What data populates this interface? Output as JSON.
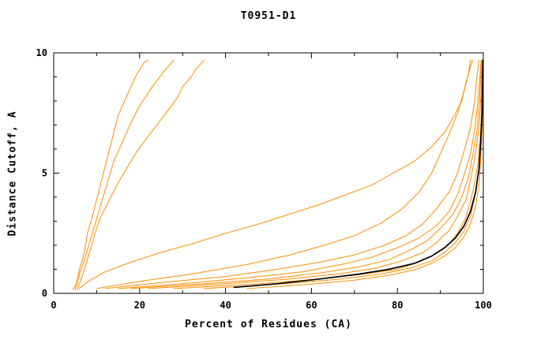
{
  "chart_data": {
    "type": "line",
    "title": "T0951-D1",
    "xlabel": "Percent of Residues (CA)",
    "ylabel": "Distance Cutoff, A",
    "xlim": [
      0,
      100
    ],
    "ylim": [
      0,
      10
    ],
    "x_ticks": [
      0,
      20,
      40,
      60,
      80,
      100
    ],
    "x_minor_ticks": [
      10,
      30,
      50,
      70,
      90
    ],
    "y_ticks": [
      0,
      5,
      10
    ],
    "y_minor_ticks": [
      1,
      2,
      3,
      4,
      6,
      7,
      8,
      9
    ],
    "grid": false,
    "legend": "none",
    "colors": {
      "background": "#ffffff",
      "axis": "#000000",
      "model_line": "#ff8c00",
      "reference_line": "#000000"
    },
    "series": [
      {
        "name": "model_poor_1",
        "color": "#ff8c00",
        "width": 1,
        "points": [
          [
            4.5,
            0.15
          ],
          [
            5,
            0.3
          ],
          [
            5.5,
            0.6
          ],
          [
            6,
            1.0
          ],
          [
            7,
            1.6
          ],
          [
            7.5,
            2.1
          ],
          [
            8,
            2.6
          ],
          [
            9,
            3.2
          ],
          [
            10,
            3.9
          ],
          [
            11,
            4.6
          ],
          [
            12,
            5.3
          ],
          [
            13,
            6.0
          ],
          [
            14,
            6.7
          ],
          [
            15,
            7.4
          ],
          [
            17,
            8.2
          ],
          [
            19,
            9.0
          ],
          [
            21,
            9.6
          ],
          [
            22,
            9.7
          ]
        ]
      },
      {
        "name": "model_poor_2",
        "color": "#ff8c00",
        "width": 1,
        "points": [
          [
            5,
            0.15
          ],
          [
            5.5,
            0.4
          ],
          [
            6,
            0.8
          ],
          [
            7,
            1.3
          ],
          [
            8,
            1.9
          ],
          [
            9,
            2.5
          ],
          [
            10,
            3.1
          ],
          [
            11,
            3.7
          ],
          [
            12,
            4.3
          ],
          [
            13,
            4.9
          ],
          [
            14,
            5.5
          ],
          [
            16,
            6.3
          ],
          [
            18,
            7.1
          ],
          [
            20,
            7.8
          ],
          [
            23,
            8.6
          ],
          [
            26,
            9.3
          ],
          [
            28,
            9.7
          ]
        ]
      },
      {
        "name": "model_poor_3",
        "color": "#ff8c00",
        "width": 1,
        "points": [
          [
            5.5,
            0.15
          ],
          [
            6,
            0.4
          ],
          [
            7,
            0.9
          ],
          [
            8,
            1.5
          ],
          [
            9,
            2.1
          ],
          [
            10,
            2.7
          ],
          [
            11,
            3.2
          ],
          [
            13,
            3.9
          ],
          [
            15,
            4.6
          ],
          [
            17,
            5.2
          ],
          [
            19,
            5.8
          ],
          [
            21,
            6.3
          ],
          [
            24,
            7.0
          ],
          [
            27,
            7.7
          ],
          [
            29,
            8.2
          ],
          [
            30,
            8.6
          ],
          [
            32,
            9.0
          ],
          [
            33,
            9.3
          ],
          [
            35,
            9.7
          ]
        ]
      },
      {
        "name": "model_mid_1",
        "color": "#ff8c00",
        "width": 1,
        "points": [
          [
            6,
            0.2
          ],
          [
            8,
            0.5
          ],
          [
            12,
            0.9
          ],
          [
            18,
            1.3
          ],
          [
            25,
            1.7
          ],
          [
            33,
            2.1
          ],
          [
            40,
            2.5
          ],
          [
            48,
            2.9
          ],
          [
            55,
            3.3
          ],
          [
            62,
            3.7
          ],
          [
            68,
            4.1
          ],
          [
            74,
            4.5
          ],
          [
            79,
            5.0
          ],
          [
            84,
            5.5
          ],
          [
            88,
            6.1
          ],
          [
            91,
            6.7
          ],
          [
            93,
            7.3
          ],
          [
            95,
            8.0
          ],
          [
            96,
            8.8
          ],
          [
            97,
            9.4
          ],
          [
            97.5,
            9.7
          ]
        ]
      },
      {
        "name": "model_mid_2",
        "color": "#ff8c00",
        "width": 1,
        "points": [
          [
            10,
            0.2
          ],
          [
            20,
            0.5
          ],
          [
            32,
            0.8
          ],
          [
            45,
            1.2
          ],
          [
            55,
            1.6
          ],
          [
            63,
            2.0
          ],
          [
            70,
            2.4
          ],
          [
            76,
            2.9
          ],
          [
            81,
            3.5
          ],
          [
            85,
            4.2
          ],
          [
            88,
            5.0
          ],
          [
            90,
            5.8
          ],
          [
            92,
            6.6
          ],
          [
            94,
            7.5
          ],
          [
            95.5,
            8.4
          ],
          [
            96.5,
            9.1
          ],
          [
            97,
            9.7
          ]
        ]
      },
      {
        "name": "model_good_1",
        "color": "#ff8c00",
        "width": 1,
        "points": [
          [
            12,
            0.2
          ],
          [
            25,
            0.45
          ],
          [
            40,
            0.7
          ],
          [
            52,
            1.0
          ],
          [
            62,
            1.3
          ],
          [
            70,
            1.6
          ],
          [
            77,
            2.0
          ],
          [
            82,
            2.4
          ],
          [
            86,
            2.9
          ],
          [
            89,
            3.5
          ],
          [
            92,
            4.2
          ],
          [
            94,
            5.0
          ],
          [
            95.5,
            5.9
          ],
          [
            97,
            6.9
          ],
          [
            98,
            8.0
          ],
          [
            98.5,
            9.0
          ],
          [
            99,
            9.7
          ]
        ]
      },
      {
        "name": "model_good_2",
        "color": "#ff8c00",
        "width": 1,
        "points": [
          [
            15,
            0.2
          ],
          [
            30,
            0.4
          ],
          [
            45,
            0.65
          ],
          [
            58,
            0.9
          ],
          [
            67,
            1.2
          ],
          [
            74,
            1.5
          ],
          [
            80,
            1.9
          ],
          [
            85,
            2.3
          ],
          [
            89,
            2.8
          ],
          [
            92,
            3.4
          ],
          [
            94,
            4.1
          ],
          [
            95.5,
            4.9
          ],
          [
            97,
            5.8
          ],
          [
            98,
            6.8
          ],
          [
            98.7,
            7.9
          ],
          [
            99.2,
            9.0
          ],
          [
            99.5,
            9.7
          ]
        ]
      },
      {
        "name": "model_good_3",
        "color": "#ff8c00",
        "width": 1,
        "points": [
          [
            18,
            0.2
          ],
          [
            35,
            0.4
          ],
          [
            50,
            0.6
          ],
          [
            62,
            0.85
          ],
          [
            71,
            1.1
          ],
          [
            78,
            1.4
          ],
          [
            83,
            1.8
          ],
          [
            87,
            2.2
          ],
          [
            90,
            2.7
          ],
          [
            93,
            3.3
          ],
          [
            95,
            4.0
          ],
          [
            96.5,
            4.8
          ],
          [
            97.5,
            5.7
          ],
          [
            98.5,
            6.7
          ],
          [
            99,
            7.8
          ],
          [
            99.4,
            8.9
          ],
          [
            99.6,
            9.7
          ]
        ]
      },
      {
        "name": "model_good_4",
        "color": "#ff8c00",
        "width": 1,
        "points": [
          [
            22,
            0.2
          ],
          [
            40,
            0.4
          ],
          [
            55,
            0.6
          ],
          [
            66,
            0.8
          ],
          [
            75,
            1.05
          ],
          [
            81,
            1.35
          ],
          [
            86,
            1.7
          ],
          [
            89,
            2.1
          ],
          [
            92,
            2.6
          ],
          [
            94,
            3.2
          ],
          [
            96,
            3.9
          ],
          [
            97,
            4.7
          ],
          [
            98,
            5.6
          ],
          [
            98.8,
            6.6
          ],
          [
            99.3,
            7.7
          ],
          [
            99.6,
            8.8
          ],
          [
            99.8,
            9.7
          ]
        ]
      },
      {
        "name": "model_good_5",
        "color": "#ff8c00",
        "width": 1,
        "points": [
          [
            28,
            0.2
          ],
          [
            48,
            0.4
          ],
          [
            62,
            0.6
          ],
          [
            72,
            0.8
          ],
          [
            80,
            1.0
          ],
          [
            85,
            1.3
          ],
          [
            89,
            1.65
          ],
          [
            92,
            2.05
          ],
          [
            94,
            2.5
          ],
          [
            95.8,
            3.1
          ],
          [
            97,
            3.8
          ],
          [
            98,
            4.6
          ],
          [
            98.8,
            5.5
          ],
          [
            99.3,
            6.5
          ],
          [
            99.6,
            7.6
          ],
          [
            99.8,
            8.8
          ],
          [
            99.9,
            9.7
          ]
        ]
      },
      {
        "name": "model_good_6",
        "color": "#ff8c00",
        "width": 1,
        "points": [
          [
            35,
            0.2
          ],
          [
            52,
            0.38
          ],
          [
            66,
            0.58
          ],
          [
            76,
            0.8
          ],
          [
            83,
            1.05
          ],
          [
            88,
            1.35
          ],
          [
            91,
            1.7
          ],
          [
            93.5,
            2.1
          ],
          [
            95.5,
            2.6
          ],
          [
            97,
            3.2
          ],
          [
            98,
            4.0
          ],
          [
            98.8,
            4.9
          ],
          [
            99.3,
            5.9
          ],
          [
            99.6,
            7.0
          ],
          [
            99.8,
            8.2
          ],
          [
            99.9,
            9.3
          ],
          [
            99.9,
            9.7
          ]
        ]
      },
      {
        "name": "model_good_7",
        "color": "#ff8c00",
        "width": 1,
        "points": [
          [
            45,
            0.2
          ],
          [
            60,
            0.38
          ],
          [
            70,
            0.55
          ],
          [
            78,
            0.75
          ],
          [
            84,
            0.98
          ],
          [
            88,
            1.25
          ],
          [
            91,
            1.55
          ],
          [
            93.5,
            1.9
          ],
          [
            95.5,
            2.35
          ],
          [
            97,
            2.9
          ],
          [
            98.2,
            3.6
          ],
          [
            99,
            4.5
          ],
          [
            99.4,
            5.6
          ],
          [
            99.7,
            6.8
          ],
          [
            99.85,
            8.0
          ],
          [
            99.9,
            9.0
          ],
          [
            99.9,
            9.7
          ]
        ]
      },
      {
        "name": "reference_black",
        "color": "#000000",
        "width": 1.7,
        "points": [
          [
            42,
            0.25
          ],
          [
            52,
            0.4
          ],
          [
            62,
            0.6
          ],
          [
            71,
            0.8
          ],
          [
            78,
            1.0
          ],
          [
            84,
            1.25
          ],
          [
            88,
            1.55
          ],
          [
            91,
            1.9
          ],
          [
            93.5,
            2.3
          ],
          [
            95.5,
            2.8
          ],
          [
            97,
            3.4
          ],
          [
            98.2,
            4.2
          ],
          [
            99,
            5.2
          ],
          [
            99.4,
            6.3
          ],
          [
            99.7,
            7.5
          ],
          [
            99.8,
            8.7
          ],
          [
            99.9,
            9.7
          ]
        ]
      }
    ]
  }
}
